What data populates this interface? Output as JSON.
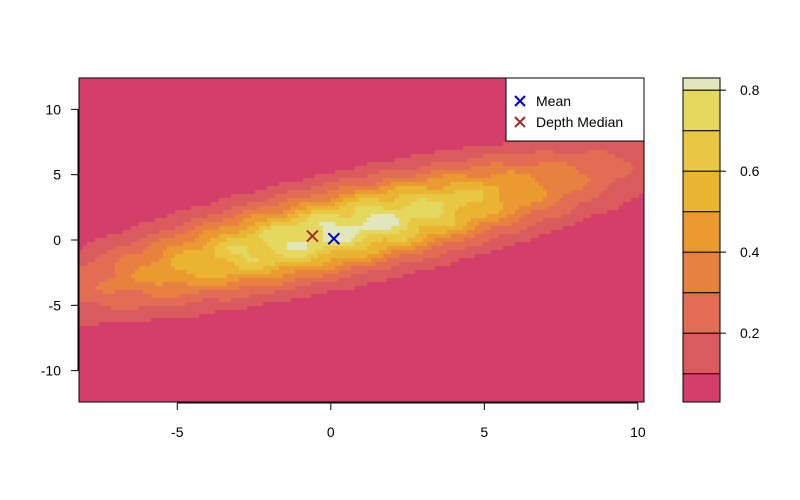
{
  "chart_data": {
    "type": "contour",
    "title": "",
    "xlabel": "",
    "ylabel": "",
    "xlim": [
      -8.2,
      10.2
    ],
    "ylim": [
      -12.4,
      12.4
    ],
    "x_ticks": [
      -5,
      0,
      5,
      10
    ],
    "x_tick_labels": [
      "-5",
      "0",
      "5",
      "10"
    ],
    "y_ticks": [
      -10,
      -5,
      0,
      5,
      10
    ],
    "y_tick_labels": [
      "-10",
      "-5",
      "0",
      "5",
      "10"
    ],
    "field": {
      "center": [
        0.4,
        0.8
      ],
      "major_axis_angle_deg": 30,
      "major_sd": 4.6,
      "minor_sd": 1.45,
      "peak_density": 0.83
    },
    "contour_levels": [
      0.05,
      0.1,
      0.2,
      0.3,
      0.4,
      0.5,
      0.6,
      0.7,
      0.8
    ],
    "colorbar": {
      "bins": [
        {
          "from": 0.03,
          "to": 0.1,
          "color": "#D33F6A"
        },
        {
          "from": 0.1,
          "to": 0.2,
          "color": "#DB5A5E"
        },
        {
          "from": 0.2,
          "to": 0.3,
          "color": "#E26D54"
        },
        {
          "from": 0.3,
          "to": 0.4,
          "color": "#E8803F"
        },
        {
          "from": 0.4,
          "to": 0.5,
          "color": "#EA9A30"
        },
        {
          "from": 0.5,
          "to": 0.6,
          "color": "#EAB331"
        },
        {
          "from": 0.6,
          "to": 0.7,
          "color": "#E8C842"
        },
        {
          "from": 0.7,
          "to": 0.8,
          "color": "#E5D85E"
        },
        {
          "from": 0.8,
          "to": 0.83,
          "color": "#E2E6BD"
        }
      ],
      "ticks": [
        0.2,
        0.4,
        0.6,
        0.8
      ],
      "tick_labels": [
        "0.2",
        "0.4",
        "0.6",
        "0.8"
      ]
    },
    "points": [
      {
        "name": "Mean",
        "x": 0.1,
        "y": 0.1,
        "color": "#0000CC",
        "marker": "x"
      },
      {
        "name": "Depth Median",
        "x": -0.6,
        "y": 0.3,
        "color": "#A52A2A",
        "marker": "x"
      }
    ],
    "legend": {
      "position": "top-right",
      "entries": [
        {
          "label": "Mean",
          "color": "#0000CC"
        },
        {
          "label": "Depth Median",
          "color": "#A52A2A"
        }
      ]
    }
  }
}
